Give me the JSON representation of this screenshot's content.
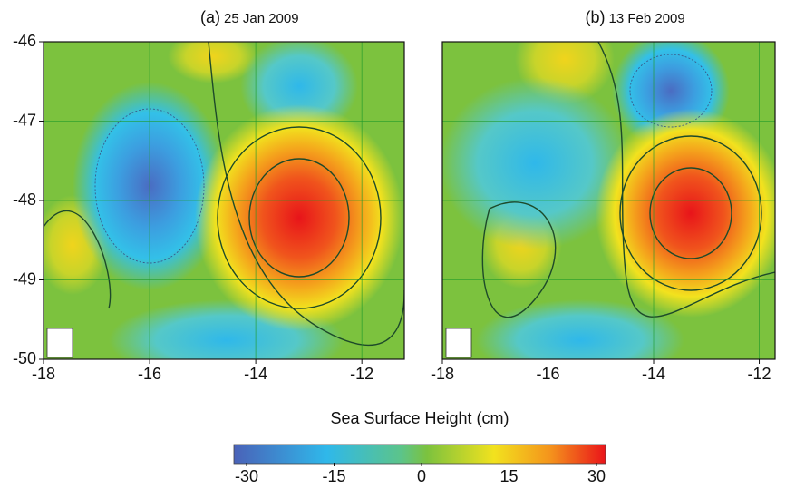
{
  "panels": [
    {
      "label": "(a)",
      "date": "25 Jan 2009",
      "xlim": [
        -18,
        -11.2
      ]
    },
    {
      "label": "(b)",
      "date": "13 Feb 2009",
      "xlim": [
        -18,
        -11.7
      ]
    }
  ],
  "xticks": [
    -18,
    -16,
    -14,
    -12
  ],
  "ylim": [
    -50,
    -46
  ],
  "yticks": [
    -50,
    -49,
    -48,
    -47,
    -46
  ],
  "colorbar": {
    "label": "Sea Surface Height (cm)",
    "lim": [
      -30,
      30
    ],
    "ticks": [
      -30,
      -15,
      0,
      15,
      30
    ]
  }
}
